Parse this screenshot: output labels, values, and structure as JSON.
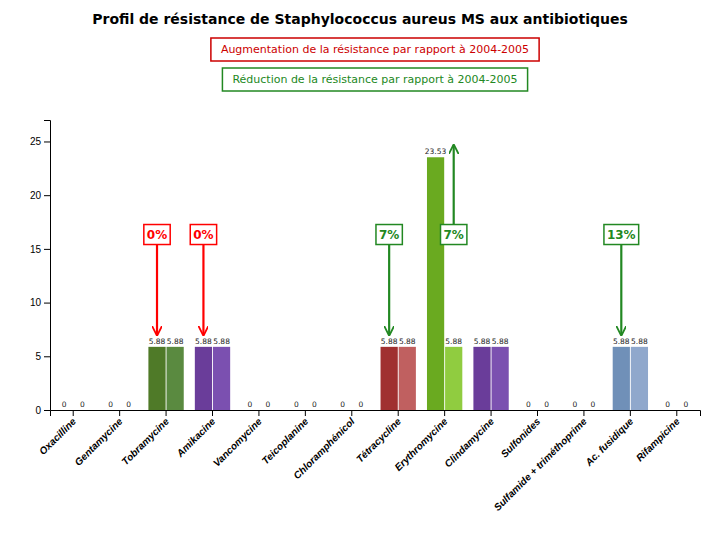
{
  "chart_data": {
    "type": "bar",
    "title": "Profil de résistance de Staphylococcus aureus MS aux antibiotiques",
    "categories": [
      "Oxacilline",
      "Gentamycine",
      "Tobramycine",
      "Amikacine",
      "Vancomycine",
      "Teicoplanine",
      "Chloramphénicol",
      "Tétracycline",
      "Erythromycine",
      "Clindamycine",
      "Sulfonides",
      "Sulfamide + triméthoprime",
      "Ac. fusidique",
      "Rifampicine"
    ],
    "series": [
      {
        "values": [
          0,
          0,
          5.88,
          5.88,
          0,
          0,
          0,
          5.88,
          23.53,
          5.88,
          0,
          0,
          5.88,
          0
        ],
        "colors": [
          "#4472c4",
          "#8b2020",
          "#4f7a28",
          "#6a3d9a",
          "#2e7d8c",
          "#8b6914",
          "#4472c4",
          "#a03030",
          "#6aaa20",
          "#6a3d9a",
          "#2e7d8c",
          "#8b6914",
          "#7090b8",
          "#c8a0a0"
        ]
      },
      {
        "values": [
          0,
          0,
          5.88,
          5.88,
          0,
          0,
          0,
          5.88,
          5.88,
          5.88,
          0,
          0,
          5.88,
          0
        ],
        "colors": [
          "#8b1010",
          "#c05050",
          "#5a8a40",
          "#7b50b0",
          "#3a9ab0",
          "#a07820",
          "#8b1010",
          "#c06060",
          "#90cc40",
          "#7b50b0",
          "#3a9ab0",
          "#a07820",
          "#90a8cc",
          "#e0b8b8"
        ]
      }
    ],
    "annotations": [
      {
        "text": "Augmentation de la résistance par rapport à 2004-2005",
        "color": "#cc0000"
      },
      {
        "text": "Réduction de la résistance par rapport à 2004-2005",
        "color": "#228822"
      },
      {
        "text": "0%",
        "color": "red",
        "category": "Tobramycine",
        "series": 0,
        "y": 15.5,
        "arrow_to": 5.88
      },
      {
        "text": "0%",
        "color": "red",
        "category": "Amikacine",
        "series": 0,
        "y": 15.5,
        "arrow_to": 5.88
      },
      {
        "text": "7%",
        "color": "#228822",
        "category": "Tétracycline",
        "series": 0,
        "y": 15.5,
        "arrow_to": 5.88
      },
      {
        "text": "7%",
        "color": "#228822",
        "category": "Erythromycine",
        "series": 1,
        "y": 15.5,
        "arrow_to": 23.53
      },
      {
        "text": "13%",
        "color": "#228822",
        "category": "Ac. fusidique",
        "series": 0,
        "y": 15.5,
        "arrow_to": 5.88
      }
    ],
    "ylim": [
      0,
      27
    ],
    "yticks": [
      0,
      5,
      10,
      15,
      20,
      25
    ],
    "grid": false,
    "data_labels": true
  }
}
